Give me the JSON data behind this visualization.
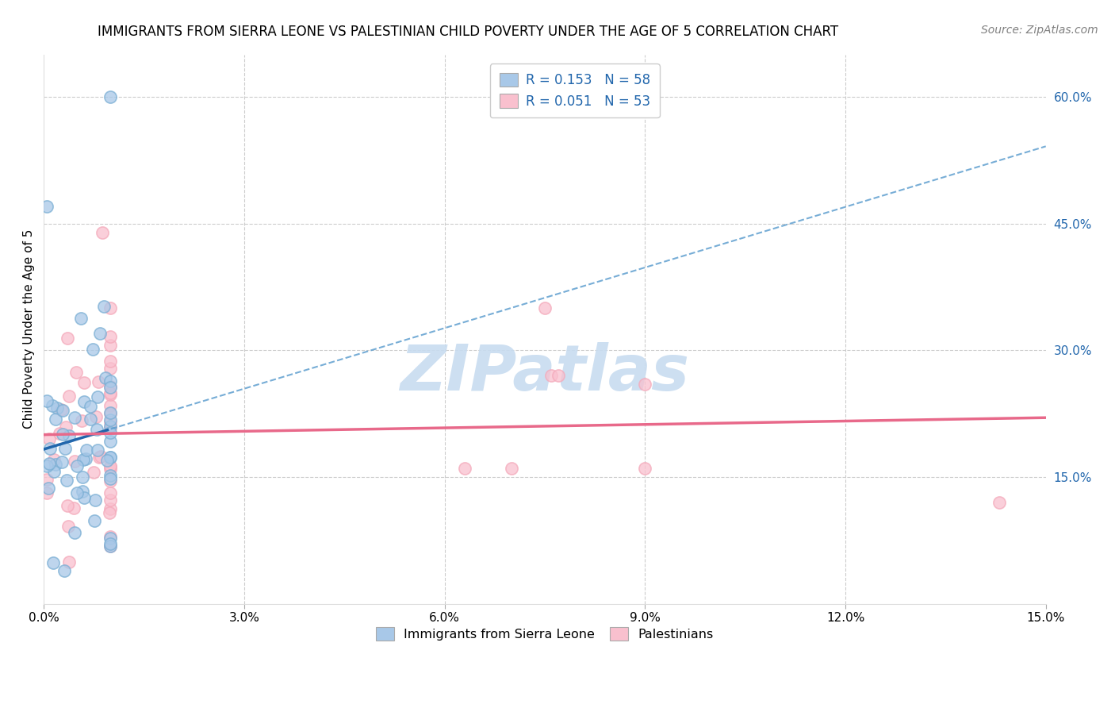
{
  "title": "IMMIGRANTS FROM SIERRA LEONE VS PALESTINIAN CHILD POVERTY UNDER THE AGE OF 5 CORRELATION CHART",
  "source": "Source: ZipAtlas.com",
  "ylabel": "Child Poverty Under the Age of 5",
  "xlim": [
    0,
    0.15
  ],
  "ylim": [
    0,
    0.65
  ],
  "xtick_vals": [
    0.0,
    0.03,
    0.06,
    0.09,
    0.12,
    0.15
  ],
  "xtick_labels": [
    "0.0%",
    "3.0%",
    "6.0%",
    "9.0%",
    "12.0%",
    "15.0%"
  ],
  "ytick_right_vals": [
    0.15,
    0.3,
    0.45,
    0.6
  ],
  "ytick_right_labels": [
    "15.0%",
    "30.0%",
    "45.0%",
    "60.0%"
  ],
  "hgrid_vals": [
    0.15,
    0.3,
    0.45,
    0.6
  ],
  "vgrid_vals": [
    0.03,
    0.06,
    0.09,
    0.12
  ],
  "blue_face": "#A8C8E8",
  "blue_edge": "#7BAFD4",
  "pink_face": "#F9C0CE",
  "pink_edge": "#F4AABB",
  "blue_trend_solid": "#2166AC",
  "blue_trend_dash": "#5599CC",
  "pink_trend": "#E8698A",
  "legend_top_text1": "R = 0.153   N = 58",
  "legend_top_text2": "R = 0.051   N = 53",
  "legend_label1": "Immigrants from Sierra Leone",
  "legend_label2": "Palestinians",
  "blue_r": 0.153,
  "pink_r": 0.051,
  "blue_n": 58,
  "pink_n": 53,
  "watermark": "ZIPatlas",
  "watermark_color": "#C8DCF0",
  "title_fontsize": 12,
  "tick_fontsize": 11,
  "legend_fontsize": 12,
  "source_fontsize": 10,
  "ylabel_fontsize": 11,
  "marker_size": 120,
  "trend_linewidth": 2.5,
  "legend_text_color": "#2166AC",
  "grid_color": "#CCCCCC",
  "spine_color": "#DDDDDD"
}
